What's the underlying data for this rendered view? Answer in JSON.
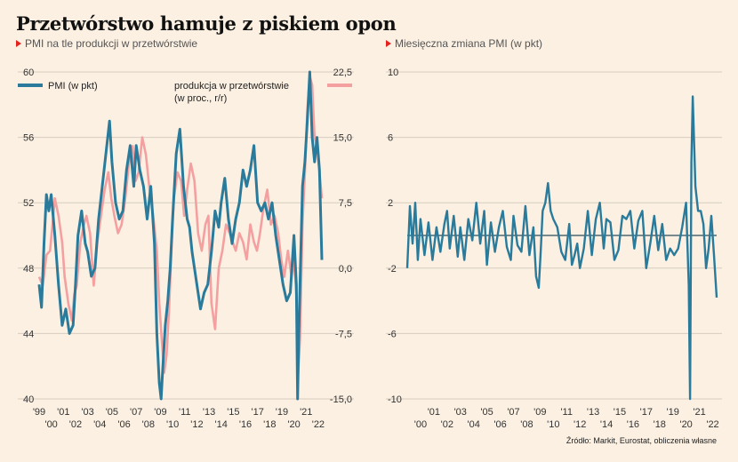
{
  "title": "Przetwórstwo hamuje z piskiem opon",
  "source": "Źródło: Markit, Eurostat, obliczenia własne",
  "colors": {
    "pmi": "#2a7b9b",
    "production": "#f4a0a0",
    "accent": "#e1241f",
    "grid": "#d8cdbf"
  },
  "chart_data": [
    {
      "type": "line",
      "subtitle": "PMI na tle produkcji w przetwórstwie",
      "xlim": [
        1999.0,
        2022.3
      ],
      "x_ticks_top": [
        "'99",
        "'01",
        "'03",
        "'05",
        "'07",
        "'09",
        "'11",
        "'13",
        "'15",
        "'17",
        "'19",
        "'21"
      ],
      "x_ticks_bottom": [
        "'00",
        "'02",
        "'04",
        "'06",
        "'08",
        "'10",
        "'12",
        "'14",
        "'16",
        "'18",
        "'20",
        "'22"
      ],
      "y_left": {
        "lim": [
          40,
          60
        ],
        "ticks": [
          "40",
          "44",
          "48",
          "52",
          "56",
          "60"
        ]
      },
      "y_right": {
        "lim": [
          -15,
          22.5
        ],
        "ticks": [
          "-15,0",
          "-7,5",
          "0,0",
          "7,5",
          "15,0",
          "22,5"
        ]
      },
      "series": [
        {
          "name": "PMI (w pkt)",
          "axis": "left",
          "x": [
            1999.0,
            1999.2,
            1999.4,
            1999.6,
            1999.8,
            2000.0,
            2000.3,
            2000.6,
            2000.9,
            2001.2,
            2001.5,
            2001.8,
            2002.0,
            2002.2,
            2002.5,
            2002.8,
            2003.0,
            2003.3,
            2003.6,
            2003.9,
            2004.2,
            2004.5,
            2004.8,
            2005.0,
            2005.3,
            2005.6,
            2005.9,
            2006.2,
            2006.5,
            2006.8,
            2007.0,
            2007.3,
            2007.6,
            2007.9,
            2008.2,
            2008.5,
            2008.7,
            2008.9,
            2009.05,
            2009.2,
            2009.4,
            2009.6,
            2009.8,
            2010.0,
            2010.3,
            2010.6,
            2010.9,
            2011.2,
            2011.4,
            2011.6,
            2011.8,
            2012.0,
            2012.3,
            2012.6,
            2012.9,
            2013.2,
            2013.5,
            2013.8,
            2014.0,
            2014.3,
            2014.6,
            2014.9,
            2015.2,
            2015.5,
            2015.8,
            2016.1,
            2016.4,
            2016.7,
            2017.0,
            2017.3,
            2017.6,
            2017.9,
            2018.2,
            2018.5,
            2018.8,
            2019.1,
            2019.4,
            2019.7,
            2020.0,
            2020.2,
            2020.3,
            2020.4,
            2020.5,
            2020.7,
            2020.9,
            2021.1,
            2021.3,
            2021.5,
            2021.7,
            2021.9,
            2022.1,
            2022.3
          ],
          "y": [
            47,
            45.6,
            49.5,
            52.5,
            51.5,
            52.5,
            50,
            47,
            44.5,
            45.5,
            44,
            44.5,
            47,
            50,
            51.5,
            49.5,
            49,
            47.5,
            48,
            51,
            53,
            55,
            57,
            54.5,
            52,
            51,
            51.5,
            54,
            55.5,
            53,
            55.5,
            54,
            53,
            51,
            53,
            49.5,
            44,
            41,
            40,
            42,
            44.5,
            46,
            48,
            51,
            55,
            56.5,
            53,
            51,
            50.5,
            49,
            48,
            47,
            45.5,
            46.5,
            47,
            49,
            51.5,
            50.5,
            52,
            53.5,
            51,
            49.5,
            51,
            52,
            54,
            53,
            54,
            55.5,
            52,
            51.5,
            52,
            51,
            52,
            50,
            48.5,
            47,
            46,
            46.5,
            50,
            47,
            40,
            44,
            47,
            53,
            54.5,
            57,
            60,
            56,
            54.5,
            56,
            54,
            48.5
          ]
        },
        {
          "name": "produkcja w przetwórstwie (w proc., r/r)",
          "axis": "right",
          "x": [
            1999.0,
            1999.3,
            1999.6,
            1999.9,
            2000.1,
            2000.3,
            2000.6,
            2000.9,
            2001.1,
            2001.4,
            2001.7,
            2001.9,
            2002.1,
            2002.4,
            2002.7,
            2002.9,
            2003.2,
            2003.5,
            2003.8,
            2004.1,
            2004.4,
            2004.7,
            2004.95,
            2005.2,
            2005.5,
            2005.8,
            2006.1,
            2006.4,
            2006.7,
            2006.95,
            2007.2,
            2007.5,
            2007.8,
            2008.1,
            2008.4,
            2008.7,
            2008.9,
            2009.1,
            2009.3,
            2009.5,
            2009.7,
            2009.9,
            2010.1,
            2010.4,
            2010.7,
            2010.95,
            2011.2,
            2011.5,
            2011.8,
            2012.1,
            2012.4,
            2012.7,
            2012.95,
            2013.2,
            2013.5,
            2013.8,
            2014.1,
            2014.4,
            2014.7,
            2014.95,
            2015.2,
            2015.5,
            2015.8,
            2016.1,
            2016.4,
            2016.7,
            2016.95,
            2017.2,
            2017.5,
            2017.8,
            2018.1,
            2018.4,
            2018.7,
            2018.95,
            2019.2,
            2019.5,
            2019.8,
            2020.0,
            2020.2,
            2020.35,
            2020.5,
            2020.7,
            2020.9,
            2021.1,
            2021.3,
            2021.5,
            2021.7,
            2021.9,
            2022.1,
            2022.3
          ],
          "y": [
            -1,
            -2,
            1.5,
            2,
            5,
            8,
            6,
            3,
            -1,
            -4,
            -6,
            -3,
            -2,
            3,
            5,
            6,
            4,
            -2,
            3,
            6,
            9,
            11,
            8,
            6,
            4,
            5,
            8,
            12,
            14,
            10,
            11,
            15,
            13,
            9,
            6,
            2,
            -4,
            -8,
            -12,
            -10,
            -5,
            2,
            8,
            11,
            10,
            6,
            9,
            12,
            10,
            4,
            2,
            5,
            6,
            -4,
            -7,
            0,
            2,
            5,
            4,
            3,
            2,
            4,
            3,
            1,
            5,
            3,
            2,
            4,
            7,
            9,
            5,
            6,
            4,
            1,
            -1,
            2,
            -1,
            1,
            -3,
            -12,
            -8,
            5,
            11,
            18,
            22,
            21,
            15,
            14,
            11,
            8
          ]
        }
      ]
    },
    {
      "type": "line",
      "subtitle": "Miesięczna zmiana PMI (w pkt)",
      "xlim": [
        1999.0,
        2022.3
      ],
      "x_ticks_top": [
        "'01",
        "'03",
        "'05",
        "'07",
        "'09",
        "'11",
        "'13",
        "'15",
        "'17",
        "'19",
        "'21"
      ],
      "x_ticks_bottom": [
        "'00",
        "'02",
        "'04",
        "'06",
        "'08",
        "'10",
        "'12",
        "'14",
        "'16",
        "'18",
        "'20",
        "'22"
      ],
      "y": {
        "lim": [
          -10,
          10
        ],
        "ticks": [
          "-10",
          "-6",
          "-2",
          "2",
          "6",
          "10"
        ]
      },
      "series": [
        {
          "name": "",
          "x": [
            1999.0,
            1999.2,
            1999.4,
            1999.6,
            1999.8,
            2000.0,
            2000.3,
            2000.6,
            2000.9,
            2001.2,
            2001.5,
            2001.8,
            2002.0,
            2002.2,
            2002.5,
            2002.8,
            2003.0,
            2003.3,
            2003.6,
            2003.9,
            2004.2,
            2004.5,
            2004.8,
            2005.0,
            2005.3,
            2005.6,
            2005.9,
            2006.2,
            2006.5,
            2006.8,
            2007.0,
            2007.3,
            2007.6,
            2007.9,
            2008.2,
            2008.5,
            2008.7,
            2008.9,
            2009.05,
            2009.2,
            2009.4,
            2009.6,
            2009.8,
            2010.0,
            2010.3,
            2010.6,
            2010.9,
            2011.2,
            2011.4,
            2011.6,
            2011.8,
            2012.0,
            2012.3,
            2012.6,
            2012.9,
            2013.2,
            2013.5,
            2013.8,
            2014.0,
            2014.3,
            2014.6,
            2014.9,
            2015.2,
            2015.5,
            2015.8,
            2016.1,
            2016.4,
            2016.7,
            2017.0,
            2017.3,
            2017.6,
            2017.9,
            2018.2,
            2018.5,
            2018.8,
            2019.1,
            2019.4,
            2019.7,
            2020.0,
            2020.2,
            2020.3,
            2020.4,
            2020.5,
            2020.7,
            2020.9,
            2021.1,
            2021.3,
            2021.5,
            2021.7,
            2021.9,
            2022.1,
            2022.3
          ],
          "y": [
            -2,
            1.8,
            -0.5,
            2,
            -1.5,
            1,
            -1.2,
            0.8,
            -1.5,
            0.5,
            -1,
            0.7,
            1.5,
            -0.8,
            1.2,
            -1.3,
            0.5,
            -1.5,
            1,
            -0.3,
            2,
            -0.5,
            1.5,
            -1.8,
            0.8,
            -1,
            0.5,
            1.5,
            -0.7,
            -1.5,
            1.2,
            -0.6,
            -1,
            1.8,
            -1.2,
            0.5,
            -2.5,
            -3.2,
            -1,
            1.5,
            2,
            3.2,
            1.5,
            1,
            0.5,
            -1,
            -1.5,
            0.7,
            -1.8,
            -1.2,
            -0.5,
            -2,
            -0.8,
            1.5,
            -1.2,
            1,
            2,
            -0.8,
            1,
            0.8,
            -1.5,
            -0.9,
            1.2,
            1,
            1.5,
            -0.8,
            0.9,
            1.5,
            -2,
            -0.5,
            1.2,
            -0.9,
            0.7,
            -1.5,
            -0.8,
            -1.2,
            -0.8,
            0.5,
            2,
            -3,
            -10,
            4.5,
            8.5,
            3,
            1.5,
            1.5,
            0.7,
            -2,
            -0.8,
            1.2,
            -1.2,
            -3.8
          ]
        }
      ]
    }
  ]
}
